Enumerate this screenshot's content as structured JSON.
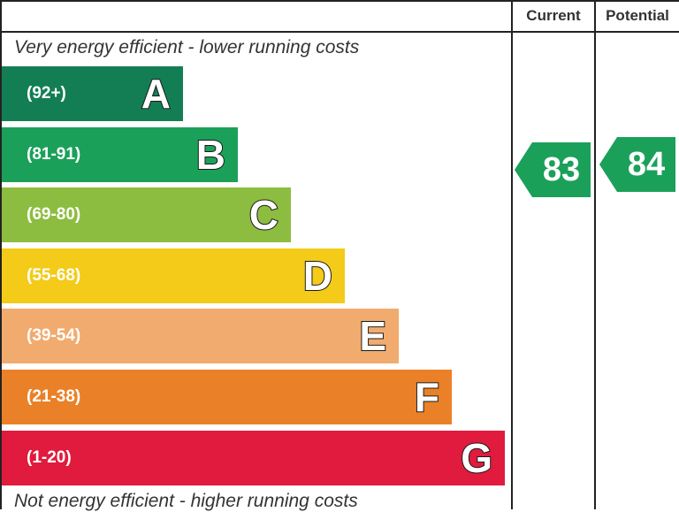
{
  "header": {
    "current_label": "Current",
    "potential_label": "Potential"
  },
  "captions": {
    "top": "Very energy efficient - lower running costs",
    "bottom": "Not energy efficient - higher running costs"
  },
  "chart_data": {
    "type": "bar",
    "categories": [
      "A",
      "B",
      "C",
      "D",
      "E",
      "F",
      "G"
    ],
    "bands": [
      {
        "letter": "A",
        "range": "(92+)",
        "color": "#137e54"
      },
      {
        "letter": "B",
        "range": "(81-91)",
        "color": "#1ba05a"
      },
      {
        "letter": "C",
        "range": "(69-80)",
        "color": "#8dbd40"
      },
      {
        "letter": "D",
        "range": "(55-68)",
        "color": "#f3cb18"
      },
      {
        "letter": "E",
        "range": "(39-54)",
        "color": "#f2ab6e"
      },
      {
        "letter": "F",
        "range": "(21-38)",
        "color": "#ea8128"
      },
      {
        "letter": "G",
        "range": "(1-20)",
        "color": "#e01b3d"
      }
    ],
    "current": {
      "value": 83,
      "band": "B",
      "color": "#1ba05a"
    },
    "potential": {
      "value": 84,
      "band": "B",
      "color": "#1ba05a"
    }
  }
}
